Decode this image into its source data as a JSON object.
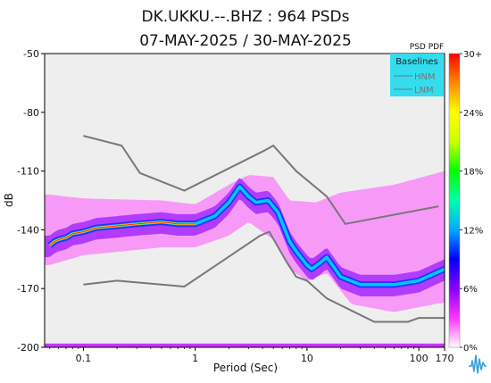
{
  "page": {
    "title_line1": "DK.UKKU.--.BHZ : 964 PSDs",
    "title_line2": "07-MAY-2025 / 30-MAY-2025"
  },
  "logo": {
    "icon": "seismic-waveform-logo-icon"
  },
  "chart_data": {
    "type": "heatmap",
    "subtype": "psd-pdf",
    "x_scale": "log",
    "xlabel": "Period (Sec)",
    "ylabel": "dB",
    "xlim": [
      0.045,
      170
    ],
    "ylim": [
      -200,
      -50
    ],
    "xticks": [
      {
        "value": 0.1,
        "label": "0.1"
      },
      {
        "value": 1,
        "label": "1"
      },
      {
        "value": 10,
        "label": "10"
      },
      {
        "value": 100,
        "label": "100"
      },
      {
        "value": 170,
        "label": "170"
      }
    ],
    "yticks": [
      {
        "value": -50,
        "label": "-50"
      },
      {
        "value": -80,
        "label": "-80"
      },
      {
        "value": -110,
        "label": "-110"
      },
      {
        "value": -140,
        "label": "-140"
      },
      {
        "value": -170,
        "label": "-170"
      },
      {
        "value": -200,
        "label": "-200"
      }
    ],
    "background_color": "#eeeeee",
    "legend": {
      "title": "Baselines",
      "entries": [
        "HNM",
        "LNM"
      ],
      "placement": "top-right",
      "background": "#33ddee"
    },
    "colorbar": {
      "title": "PSD PDF",
      "ticks": [
        "30+",
        "24%",
        "18%",
        "12%",
        "6%",
        "0%"
      ],
      "tick_values": [
        30,
        24,
        18,
        12,
        6,
        0
      ],
      "stops": [
        "#ffffff",
        "#ff33ff",
        "#8800ff",
        "#0000ff",
        "#00aaff",
        "#00ffaa",
        "#00ff00",
        "#ccff00",
        "#ffff00",
        "#ff8800",
        "#ff0000"
      ]
    },
    "baselines": [
      {
        "name": "HNM",
        "color": "#777777",
        "points": [
          [
            0.1,
            -92
          ],
          [
            0.22,
            -97
          ],
          [
            0.32,
            -111
          ],
          [
            0.8,
            -120
          ],
          [
            4,
            -100
          ],
          [
            5,
            -97
          ],
          [
            8,
            -110
          ],
          [
            15,
            -123
          ],
          [
            22,
            -137
          ],
          [
            150,
            -128
          ]
        ]
      },
      {
        "name": "LNM",
        "color": "#777777",
        "points": [
          [
            0.1,
            -168
          ],
          [
            0.2,
            -166
          ],
          [
            0.8,
            -169
          ],
          [
            3.8,
            -143
          ],
          [
            4.6,
            -141
          ],
          [
            6.5,
            -156
          ],
          [
            8,
            -164
          ],
          [
            10,
            -166
          ],
          [
            15,
            -175
          ],
          [
            40,
            -187
          ],
          [
            80,
            -187
          ],
          [
            100,
            -185
          ],
          [
            170,
            -185
          ]
        ]
      }
    ],
    "mode_curve": [
      [
        0.05,
        -148
      ],
      [
        0.055,
        -146
      ],
      [
        0.06,
        -145
      ],
      [
        0.07,
        -144
      ],
      [
        0.08,
        -142
      ],
      [
        0.1,
        -141
      ],
      [
        0.13,
        -139
      ],
      [
        0.2,
        -138
      ],
      [
        0.3,
        -137
      ],
      [
        0.5,
        -136
      ],
      [
        0.7,
        -137
      ],
      [
        1,
        -137
      ],
      [
        1.5,
        -133
      ],
      [
        2,
        -126
      ],
      [
        2.5,
        -118
      ],
      [
        3,
        -123
      ],
      [
        3.5,
        -126
      ],
      [
        4.5,
        -125
      ],
      [
        5.5,
        -131
      ],
      [
        7,
        -146
      ],
      [
        8,
        -151
      ],
      [
        10,
        -158
      ],
      [
        11,
        -160
      ],
      [
        13,
        -157
      ],
      [
        15,
        -154
      ],
      [
        20,
        -164
      ],
      [
        30,
        -168
      ],
      [
        60,
        -168
      ],
      [
        100,
        -166
      ],
      [
        170,
        -160
      ]
    ],
    "pdf_envelope_upper": [
      [
        0.05,
        -122
      ],
      [
        0.1,
        -124
      ],
      [
        0.5,
        -125
      ],
      [
        1,
        -127
      ],
      [
        2,
        -117
      ],
      [
        3,
        -112
      ],
      [
        5,
        -113
      ],
      [
        7,
        -125
      ],
      [
        12,
        -126
      ],
      [
        20,
        -121
      ],
      [
        60,
        -117
      ],
      [
        170,
        -110
      ]
    ],
    "pdf_envelope_lower": [
      [
        0.05,
        -158
      ],
      [
        0.1,
        -153
      ],
      [
        0.5,
        -149
      ],
      [
        1,
        -149
      ],
      [
        2,
        -143
      ],
      [
        3,
        -136
      ],
      [
        5,
        -145
      ],
      [
        7,
        -160
      ],
      [
        10,
        -166
      ],
      [
        15,
        -162
      ],
      [
        25,
        -178
      ],
      [
        60,
        -182
      ],
      [
        170,
        -177
      ]
    ],
    "bottom_band_db": -199
  }
}
